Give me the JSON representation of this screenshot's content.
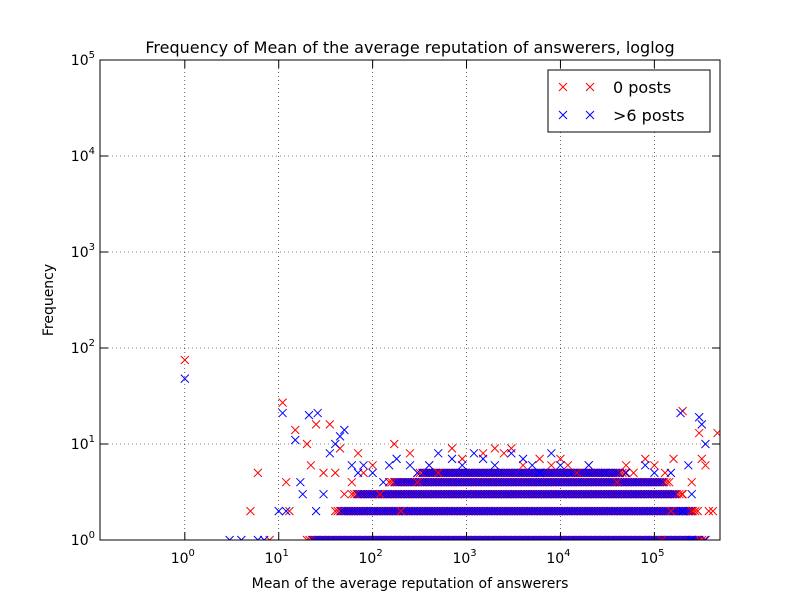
{
  "chart_data": {
    "type": "scatter",
    "title": "Frequency of Mean of the average reputation of answerers, loglog",
    "xlabel": "Mean of the average reputation of answerers",
    "ylabel": "Frequency",
    "xscale": "log",
    "yscale": "log",
    "xlim": [
      0.125,
      500000
    ],
    "ylim": [
      1,
      100000
    ],
    "grid": true,
    "legend_position": "top-right",
    "xticks": [
      {
        "base": "10",
        "exp": "0",
        "value": 1
      },
      {
        "base": "10",
        "exp": "1",
        "value": 10
      },
      {
        "base": "10",
        "exp": "2",
        "value": 100
      },
      {
        "base": "10",
        "exp": "3",
        "value": 1000
      },
      {
        "base": "10",
        "exp": "4",
        "value": 10000
      },
      {
        "base": "10",
        "exp": "5",
        "value": 100000
      }
    ],
    "yticks": [
      {
        "base": "10",
        "exp": "0",
        "value": 1
      },
      {
        "base": "10",
        "exp": "1",
        "value": 10
      },
      {
        "base": "10",
        "exp": "2",
        "value": 100
      },
      {
        "base": "10",
        "exp": "3",
        "value": 1000
      },
      {
        "base": "10",
        "exp": "4",
        "value": 10000
      },
      {
        "base": "10",
        "exp": "5",
        "value": 100000
      }
    ],
    "series": [
      {
        "name": "0 posts",
        "color": "#ff0000",
        "marker": "x",
        "points": [
          [
            1,
            75
          ],
          [
            11,
            27
          ],
          [
            15,
            14
          ],
          [
            12,
            4
          ],
          [
            13,
            2
          ],
          [
            6,
            5
          ],
          [
            5,
            2
          ],
          [
            8,
            1
          ],
          [
            20,
            10
          ],
          [
            22,
            6
          ],
          [
            25,
            16
          ],
          [
            30,
            5
          ],
          [
            35,
            16
          ],
          [
            40,
            5
          ],
          [
            45,
            9
          ],
          [
            50,
            3
          ],
          [
            60,
            4
          ],
          [
            70,
            8
          ],
          [
            80,
            5
          ],
          [
            100,
            6
          ],
          [
            120,
            3
          ],
          [
            150,
            4
          ],
          [
            170,
            10
          ],
          [
            200,
            2
          ],
          [
            250,
            8
          ],
          [
            300,
            4
          ],
          [
            400,
            6
          ],
          [
            500,
            5
          ],
          [
            700,
            9
          ],
          [
            900,
            7
          ],
          [
            1500,
            8
          ],
          [
            2000,
            9
          ],
          [
            2500,
            8
          ],
          [
            3000,
            9
          ],
          [
            4000,
            6
          ],
          [
            6000,
            7
          ],
          [
            8000,
            6
          ],
          [
            10000,
            7
          ],
          [
            12000,
            6
          ],
          [
            15000,
            5
          ],
          [
            20000,
            6
          ],
          [
            30000,
            5
          ],
          [
            40000,
            4
          ],
          [
            50000,
            6
          ],
          [
            60000,
            5
          ],
          [
            80000,
            7
          ],
          [
            100000,
            6
          ],
          [
            130000,
            5
          ],
          [
            160000,
            7
          ],
          [
            200000,
            22
          ],
          [
            250000,
            4
          ],
          [
            300000,
            13
          ],
          [
            320000,
            7
          ],
          [
            350000,
            6
          ],
          [
            380000,
            2
          ],
          [
            420000,
            2
          ],
          [
            470000,
            13
          ],
          [
            200000,
            3
          ],
          [
            150000,
            2
          ],
          [
            250000,
            2
          ],
          [
            120000,
            1
          ],
          [
            300000,
            1
          ]
        ]
      },
      {
        "name": ">6 posts",
        "color": "#0000ff",
        "marker": "x",
        "points": [
          [
            1,
            48
          ],
          [
            11,
            21
          ],
          [
            15,
            11
          ],
          [
            17,
            4
          ],
          [
            21,
            20
          ],
          [
            26,
            21
          ],
          [
            35,
            8
          ],
          [
            40,
            10
          ],
          [
            45,
            12
          ],
          [
            50,
            14
          ],
          [
            10,
            2
          ],
          [
            12,
            2
          ],
          [
            18,
            3
          ],
          [
            25,
            2
          ],
          [
            30,
            3
          ],
          [
            60,
            6
          ],
          [
            70,
            5
          ],
          [
            80,
            6
          ],
          [
            100,
            5
          ],
          [
            130,
            4
          ],
          [
            150,
            6
          ],
          [
            180,
            7
          ],
          [
            250,
            6
          ],
          [
            300,
            5
          ],
          [
            400,
            6
          ],
          [
            500,
            8
          ],
          [
            700,
            7
          ],
          [
            900,
            6
          ],
          [
            1200,
            8
          ],
          [
            1500,
            7
          ],
          [
            2000,
            6
          ],
          [
            3000,
            8
          ],
          [
            4000,
            7
          ],
          [
            5000,
            6
          ],
          [
            6000,
            5
          ],
          [
            8000,
            8
          ],
          [
            10000,
            6
          ],
          [
            13000,
            5
          ],
          [
            20000,
            6
          ],
          [
            30000,
            5
          ],
          [
            50000,
            5
          ],
          [
            80000,
            6
          ],
          [
            100000,
            5
          ],
          [
            150000,
            5
          ],
          [
            190000,
            21
          ],
          [
            230000,
            6
          ],
          [
            250000,
            3
          ],
          [
            300000,
            19
          ],
          [
            320000,
            16
          ],
          [
            350000,
            10
          ],
          [
            3,
            1
          ],
          [
            4,
            1
          ],
          [
            6,
            1
          ],
          [
            7,
            1
          ],
          [
            200000,
            2
          ],
          [
            250000,
            1
          ],
          [
            350000,
            1
          ]
        ]
      }
    ],
    "dense_bands": [
      {
        "y": 1,
        "xmin": 20,
        "xmax": 350000
      },
      {
        "y": 2,
        "xmin": 40,
        "xmax": 300000
      },
      {
        "y": 3,
        "xmin": 60,
        "xmax": 200000
      },
      {
        "y": 4,
        "xmin": 150,
        "xmax": 150000
      },
      {
        "y": 5,
        "xmin": 300,
        "xmax": 50000
      }
    ]
  }
}
